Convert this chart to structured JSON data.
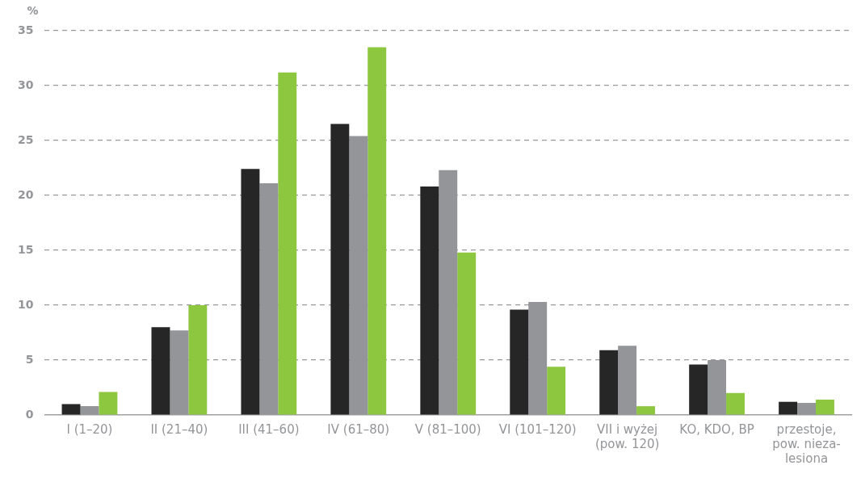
{
  "chart_data": {
    "type": "bar",
    "ylabel": "%",
    "categories": [
      "I (1–20)",
      "II (21–40)",
      "III (41–60)",
      "IV (61–80)",
      "V (81–100)",
      "VI (101–120)",
      "VII i wyżej\n(pow. 120)",
      "KO, KDO, BP",
      "przestoje,\npow. nieza-\nlesiona"
    ],
    "series": [
      {
        "color": "#262626",
        "values": [
          1.0,
          8.0,
          22.4,
          26.5,
          20.8,
          9.6,
          5.9,
          4.6,
          1.2
        ]
      },
      {
        "color": "#939598",
        "values": [
          0.8,
          7.7,
          21.1,
          25.4,
          22.3,
          10.3,
          6.3,
          5.0,
          1.1
        ]
      },
      {
        "color": "#8dc63f",
        "values": [
          2.1,
          10.0,
          31.2,
          33.5,
          14.8,
          4.4,
          0.8,
          2.0,
          1.4
        ]
      }
    ],
    "ylim": [
      0,
      35
    ],
    "yticks": [
      0,
      5,
      10,
      15,
      20,
      25,
      30,
      35
    ],
    "grid": "y",
    "legend": false
  }
}
